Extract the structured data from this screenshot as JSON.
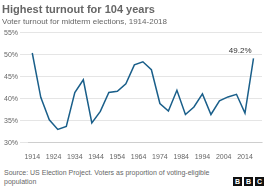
{
  "chart_data": {
    "type": "line",
    "title": "Highest turnout for 104 years",
    "subtitle": "Voter turnout for midterm elections, 1914-2018",
    "source": "Source: US Election Project. Voters as proportion of voting-eligible population",
    "logo": [
      "B",
      "B",
      "C"
    ],
    "x": [
      1914,
      1918,
      1922,
      1926,
      1930,
      1934,
      1938,
      1942,
      1946,
      1950,
      1954,
      1958,
      1962,
      1966,
      1970,
      1974,
      1978,
      1982,
      1986,
      1990,
      1994,
      1998,
      2002,
      2006,
      2010,
      2014,
      2018
    ],
    "values": [
      50.4,
      40.3,
      35.2,
      33.0,
      33.7,
      41.4,
      44.3,
      34.5,
      37.1,
      41.4,
      41.7,
      43.4,
      47.7,
      48.4,
      46.6,
      38.9,
      37.2,
      41.9,
      36.4,
      38.1,
      41.1,
      36.4,
      39.5,
      40.4,
      41.0,
      36.7,
      49.2
    ],
    "color": "#1a5f8a",
    "xlim": [
      1912,
      2022
    ],
    "xticks": [
      1914,
      1924,
      1934,
      1944,
      1954,
      1964,
      1974,
      1984,
      1994,
      2004,
      2014
    ],
    "ylim": [
      30,
      55
    ],
    "yticks": [
      {
        "value": 30,
        "label": "30%"
      },
      {
        "value": 35,
        "label": "35%"
      },
      {
        "value": 40,
        "label": "40%"
      },
      {
        "value": 45,
        "label": "45%"
      },
      {
        "value": 50,
        "label": "50%"
      },
      {
        "value": 55,
        "label": "55%"
      }
    ],
    "grid": true,
    "annotations": [
      {
        "text": "49.2%",
        "x": 2018,
        "y": 49.2
      }
    ]
  }
}
